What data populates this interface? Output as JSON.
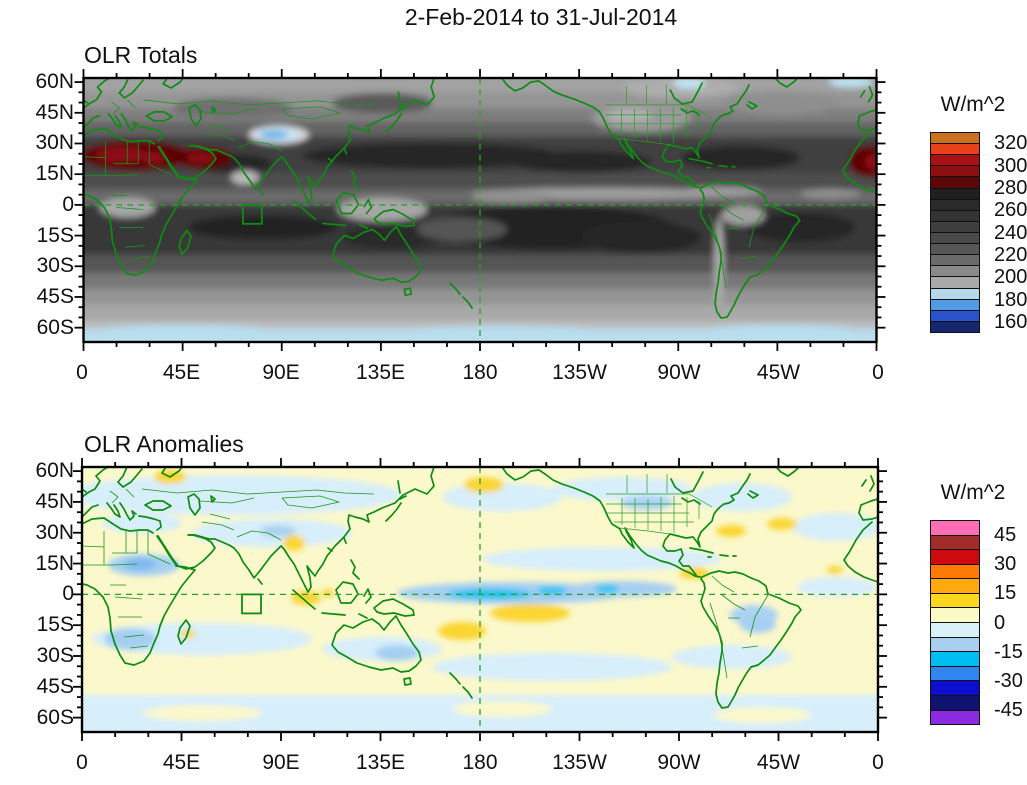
{
  "title": "2-Feb-2014 to 31-Jul-2014",
  "panels": [
    {
      "title": "OLR Totals"
    },
    {
      "title": "OLR Anomalies"
    }
  ],
  "chart_data": [
    {
      "type": "heatmap",
      "title": "OLR Totals",
      "units": "W/m^2",
      "x_axis": {
        "ticks": [
          "0",
          "45E",
          "90E",
          "135E",
          "180",
          "135W",
          "90W",
          "45W",
          "0"
        ],
        "minor_step_deg": 15,
        "range": "0E to 360E, dateline-centered at 180"
      },
      "y_axis": {
        "ticks": [
          "60N",
          "45N",
          "30N",
          "15N",
          "0",
          "15S",
          "30S",
          "45S",
          "60S"
        ],
        "minor_step_deg": 5,
        "range": "about 62N to 66S shown"
      },
      "colorbar": {
        "label": "W/m^2",
        "tick_labels": [
          "320",
          "300",
          "280",
          "260",
          "240",
          "220",
          "200",
          "180",
          "160"
        ],
        "level_boundaries_w_m2": [
          160,
          170,
          180,
          190,
          200,
          210,
          220,
          230,
          240,
          250,
          260,
          270,
          280,
          290,
          300,
          310,
          320
        ],
        "colors_top_to_bottom": [
          "#c9711f",
          "#e8401a",
          "#ab1014",
          "#8c0f12",
          "#5c0709",
          "#1f1f1f",
          "#2a2a2a",
          "#333333",
          "#3e3e3e",
          "#4a4a4a",
          "#575757",
          "#6a6a6a",
          "#8a8a8a",
          "#a9a9a9",
          "#b5d9ea",
          "#4f9be4",
          "#2a52cc",
          "#17276e"
        ]
      },
      "reference_lines": [
        "dashed green equator line",
        "dashed green 180 meridian",
        "small green box near 73-81E, 0-9S"
      ],
      "notable_features": [
        "Very high OLR (>300 W/m^2, dark red) over the Sahara and Arabian Peninsula and again at the eastern map edge over West Africa",
        "Low OLR (pale blue ~190) pocket over the Tibetan Plateau",
        "High OLR (dark gray 260-290) subtropical bands in both hemispheres; darkest cores over the SE Pacific, south Indian Ocean and south Atlantic",
        "Lighter gray ITCZ band just north of the equator across the Pacific and light convective regions over Indonesia, Congo and Amazon",
        "OLR decreases poleward: light grays near 55-60 latitude with a pale blue band along 60S"
      ]
    },
    {
      "type": "heatmap",
      "title": "OLR Anomalies",
      "units": "W/m^2",
      "x_axis": {
        "ticks": [
          "0",
          "45E",
          "90E",
          "135E",
          "180",
          "135W",
          "90W",
          "45W",
          "0"
        ],
        "minor_step_deg": 15,
        "range": "0E to 360E, dateline-centered at 180"
      },
      "y_axis": {
        "ticks": [
          "60N",
          "45N",
          "30N",
          "15N",
          "0",
          "15S",
          "30S",
          "45S",
          "60S"
        ],
        "minor_step_deg": 5,
        "range": "about 62N to 66S shown"
      },
      "colorbar": {
        "label": "W/m^2",
        "tick_labels": [
          "45",
          "30",
          "15",
          "0",
          "-15",
          "-30",
          "-45"
        ],
        "level_boundaries_w_m2": [
          -45,
          -37.5,
          -30,
          -22.5,
          -15,
          -7.5,
          0,
          7.5,
          15,
          22.5,
          30,
          37.5,
          45
        ],
        "colors_top_to_bottom": [
          "#ff6eb4",
          "#a02c2c",
          "#cc0a10",
          "#ff7905",
          "#ffa90e",
          "#fbd71f",
          "#fbf9c5",
          "#d9f1f8",
          "#a8cff0",
          "#00bdf2",
          "#2e86ee",
          "#0d0dd0",
          "#10136e",
          "#8a2be2"
        ]
      },
      "reference_lines": [
        "dashed green equator line",
        "dashed green 180 meridian",
        "small green box near 73-81E, 0-9S"
      ],
      "notable_features": [
        "Negative anomalies (blue, -10 to -25) along the equatorial Pacific from ~150E to ~120W with cyan cores near the dateline",
        "Positive anomalies (gold, +10 to +20) just south of the equator near 10S between ~165E and ~145W",
        "Gold positive patches over the Gulf of Alaska, NW Russia, Myanmar, Sumatra, the Caribbean and the subtropical North Atlantic",
        "Blue negative patches over Chad/Sudan, southern Africa, Brazil and the northern US plains",
        "Weak anomalies elsewhere shown as pale-yellow / pale-blue mottling"
      ]
    }
  ]
}
